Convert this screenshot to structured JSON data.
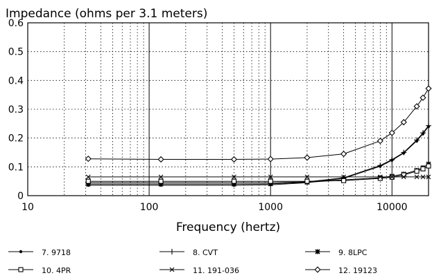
{
  "chart_data": {
    "type": "line",
    "title": "Impedance (ohms per 3.1 meters)",
    "xlabel": "Frequency (hertz)",
    "ylabel": "",
    "xscale": "log",
    "xlim": [
      10,
      20000
    ],
    "ylim": [
      0,
      0.6
    ],
    "grid": "dotted",
    "x_tick_labels": [
      "10",
      "100",
      "1000",
      "10000"
    ],
    "y_tick_labels": [
      "0",
      "0.1",
      "0.2",
      "0.3",
      "0.4",
      "0.5",
      "0.6"
    ],
    "legend_position": "bottom",
    "x": [
      31.5,
      125,
      500,
      1000,
      2000,
      4000,
      8000,
      10000,
      12500,
      16000,
      18000,
      20000
    ],
    "series": [
      {
        "name": "7. 9718",
        "marker": "dot",
        "values": [
          0.036,
          0.036,
          0.036,
          0.038,
          0.045,
          0.06,
          0.102,
          0.123,
          0.148,
          0.19,
          0.215,
          0.24
        ]
      },
      {
        "name": "8. CVT",
        "marker": "plus",
        "values": [
          0.045,
          0.045,
          0.045,
          0.045,
          0.048,
          0.062,
          0.105,
          0.125,
          0.15,
          0.193,
          0.218,
          0.243
        ]
      },
      {
        "name": "9. 8LPC",
        "marker": "asterisk",
        "values": [
          0.04,
          0.04,
          0.04,
          0.041,
          0.046,
          0.055,
          0.062,
          0.068,
          0.075,
          0.088,
          0.097,
          0.11
        ]
      },
      {
        "name": "10. 4PR",
        "marker": "square",
        "values": [
          0.05,
          0.05,
          0.05,
          0.05,
          0.05,
          0.052,
          0.06,
          0.064,
          0.072,
          0.085,
          0.093,
          0.103
        ]
      },
      {
        "name": "11. 191-036",
        "marker": "x",
        "values": [
          0.065,
          0.065,
          0.065,
          0.065,
          0.065,
          0.065,
          0.065,
          0.065,
          0.065,
          0.065,
          0.065,
          0.065
        ]
      },
      {
        "name": "12. 19123",
        "marker": "diamond",
        "values": [
          0.128,
          0.126,
          0.126,
          0.127,
          0.132,
          0.145,
          0.19,
          0.218,
          0.255,
          0.31,
          0.34,
          0.372
        ]
      }
    ]
  }
}
